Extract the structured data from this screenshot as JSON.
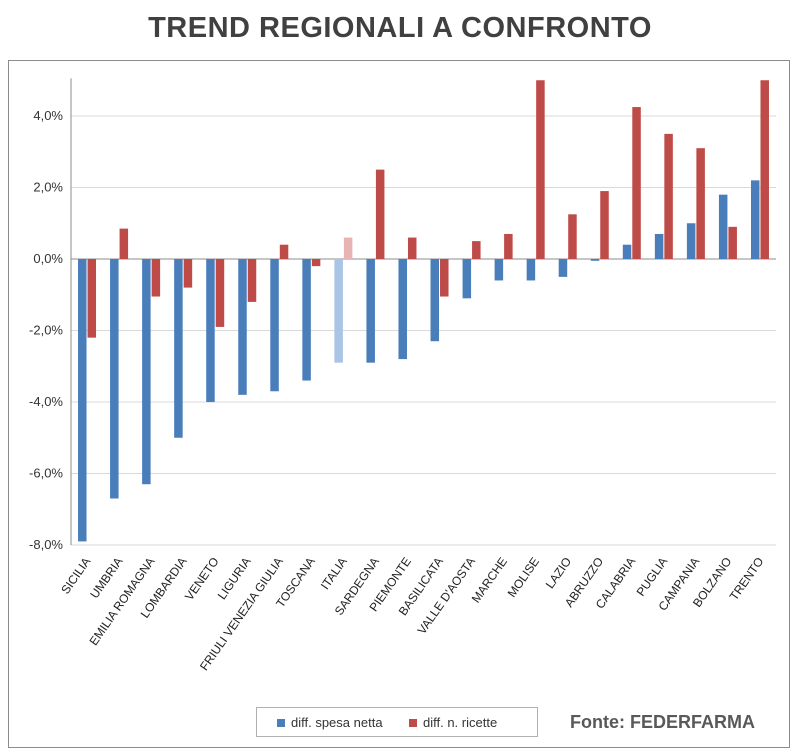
{
  "chart_data": {
    "type": "bar",
    "title": "TREND REGIONALI A CONFRONTO",
    "categories": [
      "SICILIA",
      "UMBRIA",
      "EMILIA ROMAGNA",
      "LOMBARDIA",
      "VENETO",
      "LIGURIA",
      "FRIULI VENEZIA GIULIA",
      "TOSCANA",
      "ITALIA",
      "SARDEGNA",
      "PIEMONTE",
      "BASILICATA",
      "VALLE D'AOSTA",
      "MARCHE",
      "MOLISE",
      "LAZIO",
      "ABRUZZO",
      "CALABRIA",
      "PUGLIA",
      "CAMPANIA",
      "BOLZANO",
      "TRENTO"
    ],
    "series": [
      {
        "name": "diff. spesa netta",
        "color": "#4a7ebb",
        "values": [
          -7.9,
          -6.7,
          -6.3,
          -5.0,
          -4.0,
          -3.8,
          -3.7,
          -3.4,
          -2.9,
          -2.9,
          -2.8,
          -2.3,
          -1.1,
          -0.6,
          -0.6,
          -0.5,
          -0.05,
          0.4,
          0.7,
          1.0,
          1.8,
          2.2
        ]
      },
      {
        "name": "diff. n. ricette",
        "color": "#be4b48",
        "values": [
          -2.2,
          0.85,
          -1.05,
          -0.8,
          -1.9,
          -1.2,
          0.4,
          -0.2,
          0.6,
          2.5,
          0.6,
          -1.05,
          0.5,
          0.7,
          5.0,
          1.25,
          1.9,
          4.25,
          3.5,
          3.1,
          0.9,
          5.0
        ]
      }
    ],
    "highlight_category": "ITALIA",
    "highlight_colors": {
      "diff. spesa netta": "#a9c4e4",
      "diff. n. ricette": "#e8b4b3"
    },
    "ylim": [
      -8,
      5
    ],
    "yticks": [
      -8,
      -6,
      -4,
      -2,
      0,
      2,
      4
    ],
    "ytick_labels": [
      "-8,0%",
      "-6,0%",
      "-4,0%",
      "-2,0%",
      "0,0%",
      "2,0%",
      "4,0%"
    ],
    "xlabel": "",
    "ylabel": "",
    "grid": true,
    "legend": "bottom"
  },
  "source_text": "Fonte: FEDERFARMA"
}
